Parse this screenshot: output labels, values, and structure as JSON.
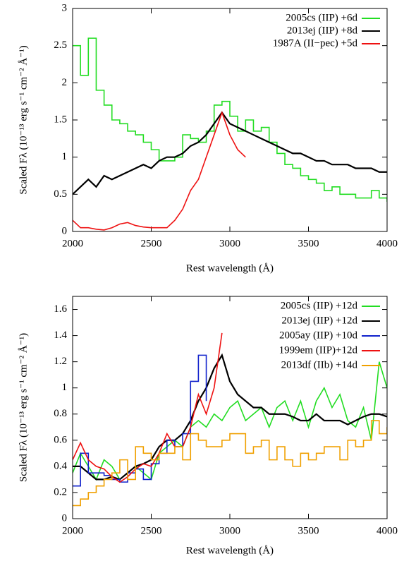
{
  "chart_data": [
    {
      "type": "line",
      "xlabel": "Rest wavelength (Å)",
      "ylabel": "Scaled Fλ (10⁻¹³ erg s⁻¹ cm⁻² Å⁻¹)",
      "xlim": [
        2000,
        4000
      ],
      "xticks": [
        2000,
        2500,
        3000,
        3500,
        4000
      ],
      "ylim": [
        0,
        3
      ],
      "yticks": [
        0,
        0.5,
        1,
        1.5,
        2,
        2.5,
        3
      ],
      "legend": "upper right",
      "x": [
        2000,
        2050,
        2100,
        2150,
        2200,
        2250,
        2300,
        2350,
        2400,
        2450,
        2500,
        2550,
        2600,
        2650,
        2700,
        2750,
        2800,
        2850,
        2900,
        2950,
        3000,
        3050,
        3100,
        3150,
        3200,
        3250,
        3300,
        3350,
        3400,
        3450,
        3500,
        3550,
        3600,
        3650,
        3700,
        3750,
        3800,
        3850,
        3900,
        3950,
        4000
      ],
      "series": [
        {
          "name": "2005cs (IIP) +6d",
          "color": "#22dd22",
          "step": true,
          "values": [
            2.5,
            2.1,
            2.6,
            1.9,
            1.7,
            1.5,
            1.45,
            1.35,
            1.3,
            1.2,
            1.1,
            0.95,
            0.95,
            1.0,
            1.3,
            1.25,
            1.2,
            1.35,
            1.7,
            1.75,
            1.55,
            1.35,
            1.5,
            1.35,
            1.4,
            1.2,
            1.05,
            0.9,
            0.85,
            0.75,
            0.7,
            0.65,
            0.55,
            0.6,
            0.5,
            0.5,
            0.45,
            0.45,
            0.55,
            0.45,
            0.4
          ]
        },
        {
          "name": "2013ej (IIP) +8d",
          "color": "#000000",
          "step": false,
          "values": [
            0.5,
            0.6,
            0.7,
            0.6,
            0.75,
            0.7,
            0.75,
            0.8,
            0.85,
            0.9,
            0.85,
            0.95,
            1.0,
            1.0,
            1.05,
            1.15,
            1.2,
            1.3,
            1.45,
            1.6,
            1.45,
            1.4,
            1.35,
            1.3,
            1.25,
            1.2,
            1.15,
            1.1,
            1.05,
            1.05,
            1.0,
            0.95,
            0.95,
            0.9,
            0.9,
            0.9,
            0.85,
            0.85,
            0.85,
            0.8,
            0.8
          ]
        },
        {
          "name": "1987A (II−pec) +5d",
          "color": "#ee1111",
          "step": false,
          "values": [
            0.15,
            0.05,
            0.05,
            0.03,
            0.02,
            0.05,
            0.1,
            0.12,
            0.08,
            0.06,
            0.05,
            0.05,
            0.05,
            0.15,
            0.3,
            0.55,
            0.7,
            1.0,
            1.3,
            1.6,
            1.3,
            1.1,
            1.0,
            null,
            null,
            null,
            null,
            null,
            null,
            null,
            null,
            null,
            null,
            null,
            null,
            null,
            null,
            null,
            null,
            null,
            null
          ]
        }
      ]
    },
    {
      "type": "line",
      "xlabel": "Rest wavelength (Å)",
      "ylabel": "Scaled Fλ (10⁻¹³ erg s⁻¹ cm⁻² Å⁻¹)",
      "xlim": [
        2000,
        4000
      ],
      "xticks": [
        2000,
        2500,
        3000,
        3500,
        4000
      ],
      "ylim": [
        0,
        1.7
      ],
      "yticks": [
        0,
        0.2,
        0.4,
        0.6,
        0.8,
        1,
        1.2,
        1.4,
        1.6
      ],
      "legend": "upper right",
      "x": [
        2000,
        2050,
        2100,
        2150,
        2200,
        2250,
        2300,
        2350,
        2400,
        2450,
        2500,
        2550,
        2600,
        2650,
        2700,
        2750,
        2800,
        2850,
        2900,
        2950,
        3000,
        3050,
        3100,
        3150,
        3200,
        3250,
        3300,
        3350,
        3400,
        3450,
        3500,
        3550,
        3600,
        3650,
        3700,
        3750,
        3800,
        3850,
        3900,
        3950,
        4000
      ],
      "series": [
        {
          "name": "2005cs (IIP) +12d",
          "color": "#22dd22",
          "step": false,
          "values": [
            0.35,
            0.5,
            0.4,
            0.3,
            0.45,
            0.4,
            0.3,
            0.35,
            0.4,
            0.35,
            0.3,
            0.5,
            0.55,
            0.6,
            0.55,
            0.7,
            0.75,
            0.7,
            0.8,
            0.75,
            0.85,
            0.9,
            0.75,
            0.8,
            0.85,
            0.7,
            0.85,
            0.9,
            0.75,
            0.9,
            0.7,
            0.9,
            1.0,
            0.85,
            0.95,
            0.75,
            0.7,
            0.85,
            0.6,
            1.2,
            1.0
          ]
        },
        {
          "name": "2013ej (IIP) +12d",
          "color": "#000000",
          "step": false,
          "values": [
            0.4,
            0.4,
            0.35,
            0.3,
            0.3,
            0.32,
            0.3,
            0.35,
            0.4,
            0.42,
            0.45,
            0.55,
            0.6,
            0.6,
            0.65,
            0.75,
            0.9,
            1.0,
            1.15,
            1.25,
            1.05,
            0.95,
            0.9,
            0.85,
            0.85,
            0.8,
            0.8,
            0.8,
            0.78,
            0.75,
            0.75,
            0.8,
            0.75,
            0.75,
            0.75,
            0.72,
            0.75,
            0.78,
            0.8,
            0.8,
            0.78
          ]
        },
        {
          "name": "2005ay (IIP) +10d",
          "color": "#1122cc",
          "step": true,
          "values": [
            0.25,
            0.5,
            0.35,
            0.35,
            0.33,
            0.3,
            0.28,
            0.35,
            0.38,
            0.3,
            0.42,
            0.5,
            0.6,
            0.55,
            0.65,
            1.05,
            1.25,
            0.9,
            null,
            null,
            null,
            null,
            null,
            null,
            null,
            null,
            null,
            null,
            null,
            null,
            null,
            null,
            null,
            null,
            null,
            null,
            null,
            null,
            null,
            null,
            null
          ]
        },
        {
          "name": "1999em (IIP)+12d",
          "color": "#ee1111",
          "step": false,
          "values": [
            0.45,
            0.58,
            0.45,
            0.4,
            0.38,
            0.32,
            0.28,
            0.32,
            0.38,
            0.42,
            0.4,
            0.5,
            0.65,
            0.55,
            0.55,
            0.7,
            0.95,
            0.8,
            1.0,
            1.42,
            null,
            null,
            null,
            null,
            null,
            null,
            null,
            null,
            null,
            null,
            null,
            null,
            null,
            null,
            null,
            null,
            null,
            null,
            null,
            null,
            null
          ]
        },
        {
          "name": "2013df (IIb) +14d",
          "color": "#f0a000",
          "step": true,
          "values": [
            0.1,
            0.15,
            0.2,
            0.25,
            0.3,
            0.35,
            0.45,
            0.3,
            0.55,
            0.5,
            0.45,
            0.5,
            0.5,
            0.55,
            0.45,
            0.65,
            0.6,
            0.55,
            0.55,
            0.6,
            0.65,
            0.65,
            0.5,
            0.55,
            0.6,
            0.45,
            0.55,
            0.45,
            0.4,
            0.5,
            0.45,
            0.5,
            0.55,
            0.55,
            0.45,
            0.6,
            0.55,
            0.6,
            0.75,
            0.65,
            0.7
          ]
        }
      ]
    }
  ]
}
